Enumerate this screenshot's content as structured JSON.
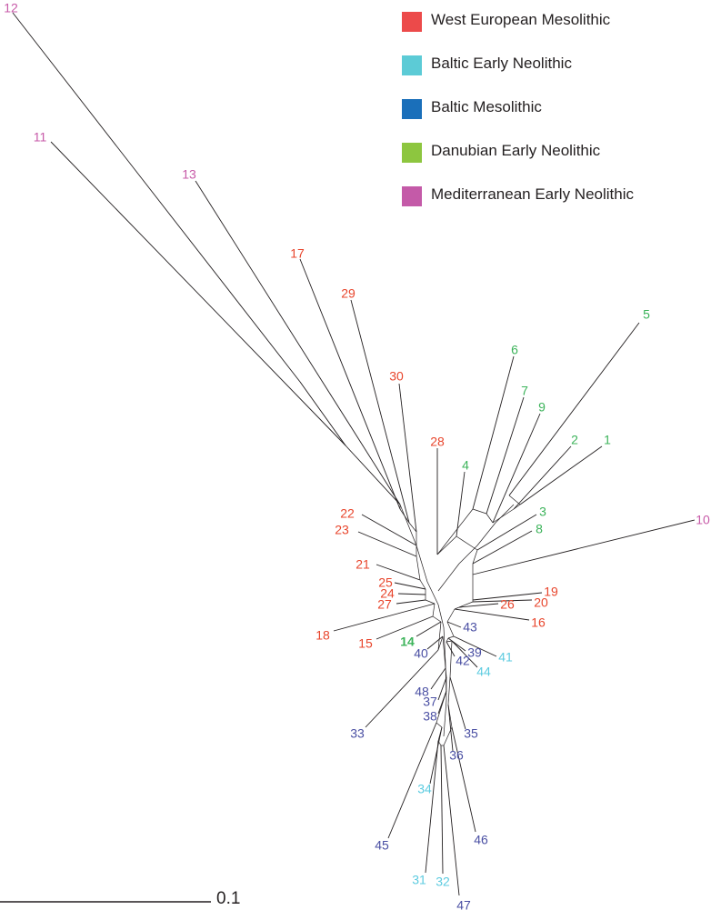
{
  "colors": {
    "west_european_mesolithic": "#e8452c",
    "baltic_early_neolithic": "#5ccbe0",
    "baltic_mesolithic": "#4a4fa3",
    "danubian_early_neolithic": "#3cb35a",
    "mediterranean_early_neolithic": "#c75aa8"
  },
  "legend": [
    {
      "label": "West European Mesolithic",
      "color": "#ec4a4a"
    },
    {
      "label": "Baltic Early Neolithic",
      "color": "#5ccbd6"
    },
    {
      "label": "Baltic Mesolithic",
      "color": "#1a6fba"
    },
    {
      "label": "Danubian Early Neolithic",
      "color": "#8dc63f"
    },
    {
      "label": "Mediterranean Early Neolithic",
      "color": "#c45aa8"
    }
  ],
  "scale_bar": {
    "label": "0.1"
  },
  "leaves": [
    {
      "id": "12",
      "group": "mediterranean_early_neolithic"
    },
    {
      "id": "11",
      "group": "mediterranean_early_neolithic"
    },
    {
      "id": "13",
      "group": "mediterranean_early_neolithic"
    },
    {
      "id": "10",
      "group": "mediterranean_early_neolithic"
    },
    {
      "id": "17",
      "group": "west_european_mesolithic"
    },
    {
      "id": "29",
      "group": "west_european_mesolithic"
    },
    {
      "id": "30",
      "group": "west_european_mesolithic"
    },
    {
      "id": "28",
      "group": "west_european_mesolithic"
    },
    {
      "id": "22",
      "group": "west_european_mesolithic"
    },
    {
      "id": "23",
      "group": "west_european_mesolithic"
    },
    {
      "id": "21",
      "group": "west_european_mesolithic"
    },
    {
      "id": "25",
      "group": "west_european_mesolithic"
    },
    {
      "id": "24",
      "group": "west_european_mesolithic"
    },
    {
      "id": "27",
      "group": "west_european_mesolithic"
    },
    {
      "id": "18",
      "group": "west_european_mesolithic"
    },
    {
      "id": "15",
      "group": "west_european_mesolithic"
    },
    {
      "id": "19",
      "group": "west_european_mesolithic"
    },
    {
      "id": "20",
      "group": "west_european_mesolithic"
    },
    {
      "id": "26",
      "group": "west_european_mesolithic"
    },
    {
      "id": "16",
      "group": "west_european_mesolithic"
    },
    {
      "id": "5",
      "group": "danubian_early_neolithic"
    },
    {
      "id": "6",
      "group": "danubian_early_neolithic"
    },
    {
      "id": "7",
      "group": "danubian_early_neolithic"
    },
    {
      "id": "9",
      "group": "danubian_early_neolithic"
    },
    {
      "id": "2",
      "group": "danubian_early_neolithic"
    },
    {
      "id": "1",
      "group": "danubian_early_neolithic"
    },
    {
      "id": "4",
      "group": "danubian_early_neolithic"
    },
    {
      "id": "3",
      "group": "danubian_early_neolithic"
    },
    {
      "id": "8",
      "group": "danubian_early_neolithic"
    },
    {
      "id": "14",
      "group": "danubian_early_neolithic"
    },
    {
      "id": "43",
      "group": "baltic_mesolithic"
    },
    {
      "id": "40",
      "group": "baltic_mesolithic"
    },
    {
      "id": "39",
      "group": "baltic_mesolithic"
    },
    {
      "id": "42",
      "group": "baltic_mesolithic"
    },
    {
      "id": "41",
      "group": "baltic_early_neolithic"
    },
    {
      "id": "44",
      "group": "baltic_early_neolithic"
    },
    {
      "id": "48",
      "group": "baltic_mesolithic"
    },
    {
      "id": "37",
      "group": "baltic_mesolithic"
    },
    {
      "id": "38",
      "group": "baltic_mesolithic"
    },
    {
      "id": "33",
      "group": "baltic_mesolithic"
    },
    {
      "id": "35",
      "group": "baltic_mesolithic"
    },
    {
      "id": "36",
      "group": "baltic_mesolithic"
    },
    {
      "id": "34",
      "group": "baltic_early_neolithic"
    },
    {
      "id": "45",
      "group": "baltic_mesolithic"
    },
    {
      "id": "46",
      "group": "baltic_mesolithic"
    },
    {
      "id": "31",
      "group": "baltic_early_neolithic"
    },
    {
      "id": "32",
      "group": "baltic_early_neolithic"
    },
    {
      "id": "47",
      "group": "baltic_mesolithic"
    }
  ]
}
